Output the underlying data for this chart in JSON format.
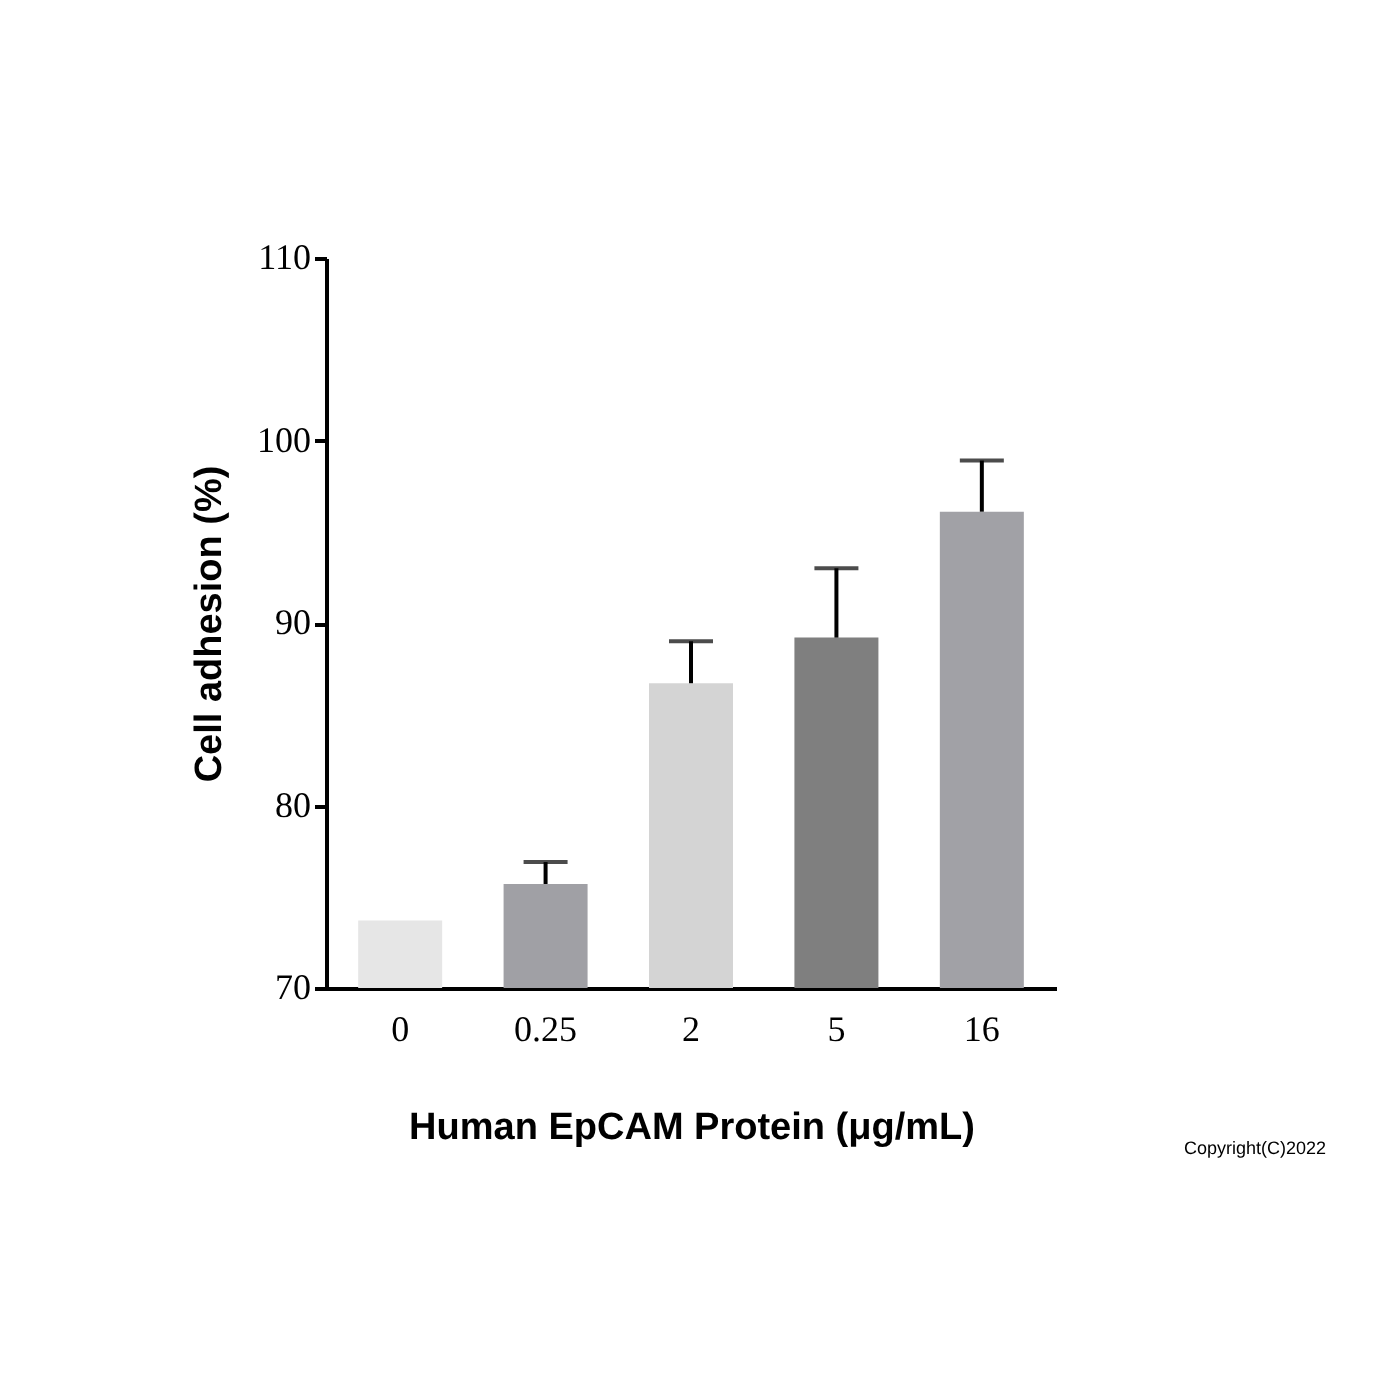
{
  "chart_data": {
    "type": "bar",
    "xlabel": "Human EpCAM Protein (μg/mL)",
    "ylabel": "Cell adhesion (%)",
    "categories": [
      "0",
      "0.25",
      "2",
      "5",
      "16"
    ],
    "values": [
      73.7,
      75.7,
      86.7,
      89.2,
      96.1
    ],
    "colors": [
      "#e6e6e6",
      "#a0a0a5",
      "#d4d4d4",
      "#7f7f7f",
      "#a1a1a6"
    ],
    "errors": [
      null,
      [
        75.7,
        76.9
      ],
      [
        86.7,
        89.0
      ],
      [
        89.2,
        93.0
      ],
      [
        96.1,
        98.9
      ]
    ],
    "ylim": [
      70,
      110
    ],
    "yticks": [
      70,
      80,
      90,
      100,
      110
    ],
    "grid": false,
    "annotations": [
      "Copyright(C)2022"
    ]
  }
}
